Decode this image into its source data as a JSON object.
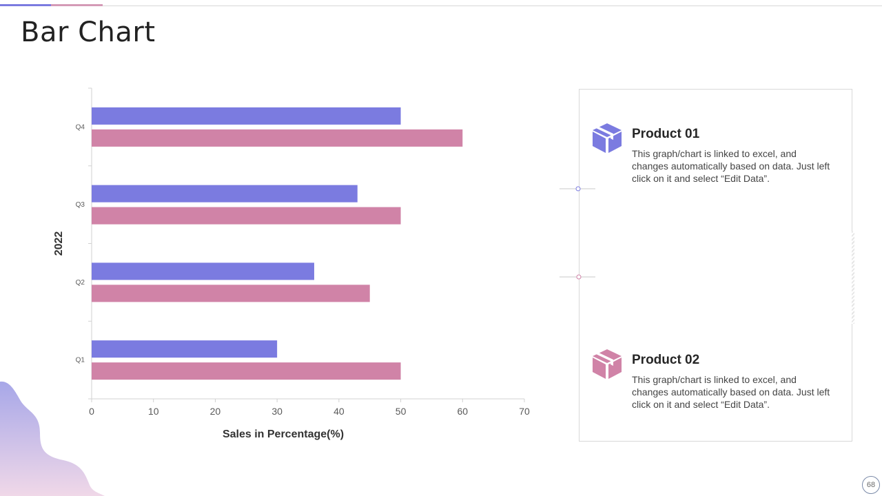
{
  "slide": {
    "title": "Bar Chart",
    "page_number": "68"
  },
  "colors": {
    "accent_blue": "#7b7be0",
    "accent_pink": "#d083a7",
    "blob_top": "#a7a7e8",
    "blob_bottom": "#f0d8e8"
  },
  "products": [
    {
      "title": "Product 01",
      "description": "This graph/chart is linked to excel, and changes automatically based on data. Just left click on it and select “Edit Data”.",
      "icon": "box-icon",
      "color": "#7b7be0"
    },
    {
      "title": "Product 02",
      "description": "This graph/chart is linked to excel, and changes automatically based on data. Just left click on it and select “Edit Data”.",
      "icon": "box-icon",
      "color": "#d083a7"
    }
  ],
  "chart_data": {
    "type": "bar",
    "orientation": "horizontal",
    "title": "",
    "categories": [
      "Q1",
      "Q2",
      "Q3",
      "Q4"
    ],
    "series": [
      {
        "name": "Product 01",
        "color": "#7b7be0",
        "values": [
          30,
          36,
          43,
          50
        ]
      },
      {
        "name": "Product 02",
        "color": "#d083a7",
        "values": [
          50,
          45,
          50,
          60
        ]
      }
    ],
    "xlabel": "Sales in Percentage(%)",
    "ylabel": "2022",
    "xlim": [
      0,
      70
    ],
    "xticks": [
      0,
      10,
      20,
      30,
      40,
      50,
      60,
      70
    ],
    "grid": false,
    "legend": "none"
  }
}
